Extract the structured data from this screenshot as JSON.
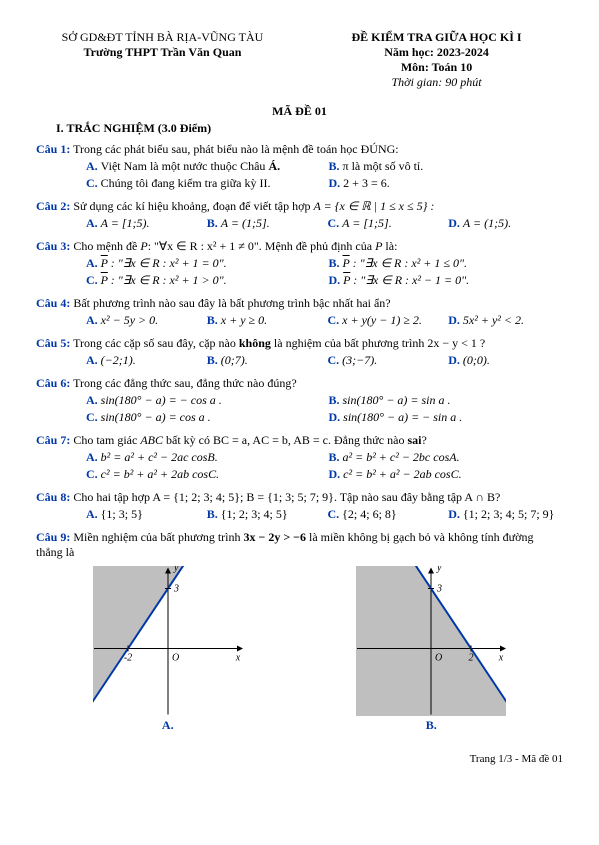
{
  "header": {
    "dept": "SỞ GD&ĐT TỈNH BÀ RỊA-VŨNG TÀU",
    "school": "Trường THPT Trần Văn Quan",
    "exam_title": "ĐỀ KIỂM TRA GIỮA HỌC KÌ I",
    "year": "Năm học: 2023-2024",
    "subject": "Môn: Toán 10",
    "duration": "Thời gian: 90 phút"
  },
  "code": "MÃ ĐỀ 01",
  "section1": "I. TRẮC NGHIỆM (3.0 Điểm)",
  "q1": {
    "label": "Câu 1:",
    "text": "Trong các phát biểu sau, phát biểu nào là mệnh đề toán học ĐÚNG:",
    "A": "Việt Nam là một nước thuộc Châu ",
    "A_bold": "Á.",
    "B": "π là một số vô tỉ.",
    "C": "Chúng tôi đang kiểm tra giữa kỳ II.",
    "D": "2 + 3 = 6."
  },
  "q2": {
    "label": "Câu 2:",
    "text_a": "Sử dụng các kí hiệu khoảng, đoạn để viết tập hợp ",
    "text_b": "A = {x ∈ ℝ | 1 ≤ x ≤ 5} :",
    "A": "A = [1;5).",
    "B": "A = (1;5].",
    "C": "A = [1;5].",
    "D": "A = (1;5)."
  },
  "q3": {
    "label": "Câu 3:",
    "text_a": "Cho mệnh đề ",
    "text_b": "P",
    "text_c": ": \"∀x ∈ R : x² + 1 ≠ 0\". Mệnh đề phủ định của ",
    "text_d": "P",
    "text_e": " là:",
    "A": " : \"∃x ∈ R : x² + 1 = 0\".",
    "B": " : \"∃x ∈ R : x² + 1 ≤ 0\".",
    "C": " : \"∃x ∈ R : x² + 1 > 0\".",
    "D": " : \"∃x ∈ R : x² − 1 = 0\"."
  },
  "q4": {
    "label": "Câu 4:",
    "text": "Bất phương trình nào sau đây là bất phương trình bậc nhất hai ẩn?",
    "A": "x² − 5y > 0.",
    "B": "x + y ≥ 0.",
    "C": "x + y(y − 1) ≥ 2.",
    "D": "5x² + y² < 2."
  },
  "q5": {
    "label": "Câu 5:",
    "text_a": "Trong các cặp số sau đây, cặp nào ",
    "text_b": "không",
    "text_c": " là nghiệm của bất phương trình 2x − y < 1 ?",
    "A": "(−2;1).",
    "B": "(0;7).",
    "C": "(3;−7).",
    "D": "(0;0)."
  },
  "q6": {
    "label": "Câu 6:",
    "text": "Trong các đẳng thức sau, đẳng thức nào đúng?",
    "A": "sin(180° − a) = − cos a .",
    "B": "sin(180° − a) = sin a .",
    "C": "sin(180° − a) = cos a .",
    "D": "sin(180° − a) = − sin a ."
  },
  "q7": {
    "label": "Câu 7:",
    "text_a": "Cho tam giác ",
    "text_b": "ABC",
    "text_c": " bất kỳ có BC = a, AC = b, AB = c. Đẳng thức nào ",
    "text_d": "sai",
    "text_e": "?",
    "A": "b² = a² + c² − 2ac cosB.",
    "B": "a² = b² + c² − 2bc cosA.",
    "C": "c² = b² + a² + 2ab cosC.",
    "D": "c² = b² + a² − 2ab cosC."
  },
  "q8": {
    "label": "Câu 8:",
    "text": "Cho hai tập hợp A = {1; 2; 3; 4; 5}; B = {1; 3; 5; 7; 9}. Tập nào sau đây bằng tập A ∩ B?",
    "A": "{1; 3; 5}",
    "B": "{1; 2; 3; 4; 5}",
    "C": "{2; 4; 6; 8}",
    "D": "{1; 2; 3; 4; 5; 7; 9}"
  },
  "q9": {
    "label": "Câu 9:",
    "text_a": "Miền nghiệm của bất phương trình ",
    "text_b": "3x − 2y > −6",
    "text_c": " là miền không bị gạch bỏ và không tính đường thẳng là",
    "figA": "A.",
    "figB": "B."
  },
  "footer": "Trang 1/3 - Mã đề 01",
  "chart": {
    "width": 150,
    "height": 150,
    "axis_color": "#000000",
    "line_color": "#0038a8",
    "fill_color": "#bfbfbf",
    "yTick": 3,
    "xTickA": -2,
    "xTickB": 2,
    "origin_label": "O"
  }
}
